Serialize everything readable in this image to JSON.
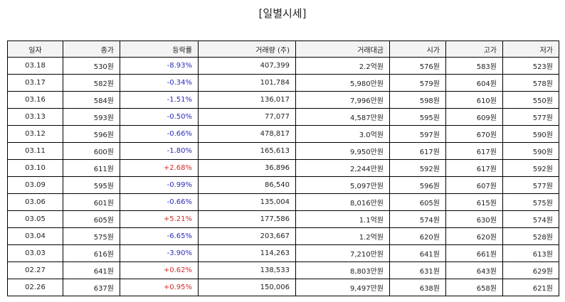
{
  "title": "[일별시세]",
  "colors": {
    "up": "#d42a2a",
    "down": "#2a2ab8"
  },
  "headers": [
    "일자",
    "종가",
    "등락률",
    "거래량 (주)",
    "거래대금",
    "시가",
    "고가",
    "저가"
  ],
  "rows": [
    {
      "date": "03.18",
      "close": "530원",
      "change": "-8.93%",
      "dir": "down",
      "volume": "407,399",
      "amount": "2.2억원",
      "open": "576원",
      "high": "583원",
      "low": "523원"
    },
    {
      "date": "03.17",
      "close": "582원",
      "change": "-0.34%",
      "dir": "down",
      "volume": "101,784",
      "amount": "5,980만원",
      "open": "579원",
      "high": "604원",
      "low": "578원"
    },
    {
      "date": "03.16",
      "close": "584원",
      "change": "-1.51%",
      "dir": "down",
      "volume": "136,017",
      "amount": "7,996만원",
      "open": "598원",
      "high": "610원",
      "low": "550원"
    },
    {
      "date": "03.13",
      "close": "593원",
      "change": "-0.50%",
      "dir": "down",
      "volume": "77,077",
      "amount": "4,587만원",
      "open": "595원",
      "high": "609원",
      "low": "577원"
    },
    {
      "date": "03.12",
      "close": "596원",
      "change": "-0.66%",
      "dir": "down",
      "volume": "478,817",
      "amount": "3.0억원",
      "open": "597원",
      "high": "670원",
      "low": "590원"
    },
    {
      "date": "03.11",
      "close": "600원",
      "change": "-1.80%",
      "dir": "down",
      "volume": "165,613",
      "amount": "9,950만원",
      "open": "617원",
      "high": "617원",
      "low": "590원"
    },
    {
      "date": "03.10",
      "close": "611원",
      "change": "+2.68%",
      "dir": "up",
      "volume": "36,896",
      "amount": "2,244만원",
      "open": "592원",
      "high": "617원",
      "low": "592원"
    },
    {
      "date": "03.09",
      "close": "595원",
      "change": "-0.99%",
      "dir": "down",
      "volume": "86,540",
      "amount": "5,097만원",
      "open": "596원",
      "high": "607원",
      "low": "577원"
    },
    {
      "date": "03.06",
      "close": "601원",
      "change": "-0.66%",
      "dir": "down",
      "volume": "135,004",
      "amount": "8,016만원",
      "open": "605원",
      "high": "615원",
      "low": "575원"
    },
    {
      "date": "03.05",
      "close": "605원",
      "change": "+5.21%",
      "dir": "up",
      "volume": "177,586",
      "amount": "1.1억원",
      "open": "574원",
      "high": "630원",
      "low": "574원"
    },
    {
      "date": "03.04",
      "close": "575원",
      "change": "-6.65%",
      "dir": "down",
      "volume": "203,667",
      "amount": "1.2억원",
      "open": "620원",
      "high": "620원",
      "low": "528원"
    },
    {
      "date": "03.03",
      "close": "616원",
      "change": "-3.90%",
      "dir": "down",
      "volume": "114,263",
      "amount": "7,210만원",
      "open": "641원",
      "high": "661원",
      "low": "613원"
    },
    {
      "date": "02.27",
      "close": "641원",
      "change": "+0.62%",
      "dir": "up",
      "volume": "138,533",
      "amount": "8,803만원",
      "open": "631원",
      "high": "643원",
      "low": "629원"
    },
    {
      "date": "02.26",
      "close": "637원",
      "change": "+0.95%",
      "dir": "up",
      "volume": "150,006",
      "amount": "9,497만원",
      "open": "638원",
      "high": "658원",
      "low": "621원"
    }
  ]
}
